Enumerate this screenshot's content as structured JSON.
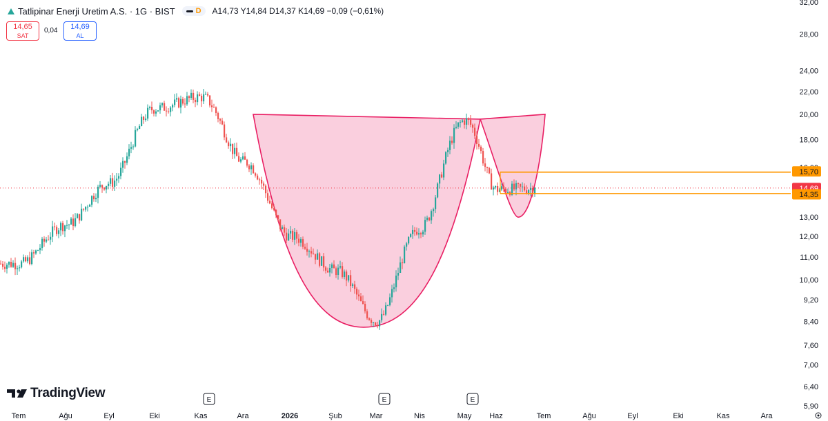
{
  "header": {
    "title": "Tatlipinar Enerji Uretim A.S. · 1G · BIST",
    "interval_badge": "D",
    "ohlc": "A14,73 Y14,84 D14,37 K14,69 −0,09 (−0,61%)",
    "sell_price": "14,65",
    "sell_label": "SAT",
    "spread": "0,04",
    "buy_price": "14,69",
    "buy_label": "AL"
  },
  "branding": {
    "name": "TradingView"
  },
  "colors": {
    "up": "#26a69a",
    "down": "#ef5350",
    "pattern_fill": "#f8bbd0",
    "pattern_stroke": "#e91e63",
    "level": "#ff9800",
    "last_price": "#f23645"
  },
  "chart_data": {
    "type": "candlestick",
    "title": "Tatlipinar Enerji Uretim A.S. · 1G · BIST",
    "y_scale": "log",
    "ylim": [
      5.9,
      32.0
    ],
    "y_ticks": [
      {
        "value": 32.0,
        "label": "32,00"
      },
      {
        "value": 28.0,
        "label": "28,00"
      },
      {
        "value": 24.0,
        "label": "24,00"
      },
      {
        "value": 22.0,
        "label": "22,00"
      },
      {
        "value": 20.0,
        "label": "20,00"
      },
      {
        "value": 18.0,
        "label": "18,00"
      },
      {
        "value": 16.0,
        "label": "16,00"
      },
      {
        "value": 13.0,
        "label": "13,00"
      },
      {
        "value": 12.0,
        "label": "12,00"
      },
      {
        "value": 11.0,
        "label": "11,00"
      },
      {
        "value": 10.0,
        "label": "10,00"
      },
      {
        "value": 9.2,
        "label": "9,20"
      },
      {
        "value": 8.4,
        "label": "8,40"
      },
      {
        "value": 7.6,
        "label": "7,60"
      },
      {
        "value": 7.0,
        "label": "7,00"
      },
      {
        "value": 6.4,
        "label": "6,40"
      },
      {
        "value": 5.9,
        "label": "5,90"
      }
    ],
    "x_ticks": [
      "Tem",
      "Ağu",
      "Eyl",
      "Eki",
      "Kas",
      "Ara",
      "2026",
      "Şub",
      "Mar",
      "Nis",
      "May",
      "Haz",
      "Tem",
      "Ağu",
      "Eyl",
      "Eki",
      "Kas",
      "Ara"
    ],
    "price_path": [
      [
        "Tem",
        10.7
      ],
      [
        "Ağu",
        12.6
      ],
      [
        "Eyl",
        15.0
      ],
      [
        "Eki",
        20.5
      ],
      [
        "Kas",
        21.5
      ],
      [
        "Ara",
        16.4
      ],
      [
        "2026",
        12.0
      ],
      [
        "Şub",
        10.4
      ],
      [
        "Mar",
        8.4
      ],
      [
        "Nis",
        12.4
      ],
      [
        "May",
        19.5
      ],
      [
        "Haz",
        14.6
      ],
      [
        "Tem",
        14.69
      ]
    ],
    "price_labels": [
      {
        "value": 15.7,
        "label": "15,70",
        "kind": "level"
      },
      {
        "value": 14.69,
        "label": "14,69",
        "kind": "last"
      },
      {
        "value": 14.35,
        "label": "14,35",
        "kind": "level"
      }
    ],
    "event_markers": [
      {
        "at": "Kas",
        "label": "E"
      },
      {
        "at": "Mar",
        "label": "E"
      },
      {
        "at": "May",
        "label": "E"
      }
    ],
    "drawings": {
      "cup_rim": [
        [
          "Ara",
          20.0
        ],
        [
          "May",
          19.6
        ]
      ],
      "cup_bottom": [
        "Mar",
        8.2
      ],
      "handle_right_top": 20.0,
      "handle_bottom": 13.0,
      "resistance": 15.7,
      "support": 14.35
    },
    "grid": false,
    "legend": "none"
  }
}
